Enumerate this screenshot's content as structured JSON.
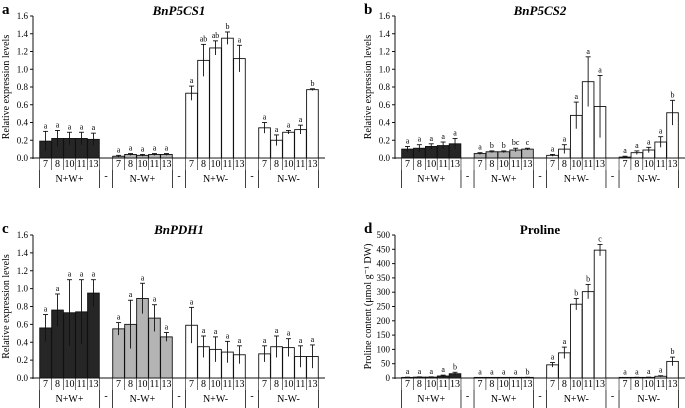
{
  "colors": {
    "nwpp": "#262626",
    "nmwp": "#b4b4b4",
    "npwm": "#ffffff",
    "nmwm": "#ffffff",
    "stroke": "#111111"
  },
  "chart_data": [
    {
      "panel": "a",
      "title": "BnP5CS1",
      "type": "bar",
      "ylabel": "Relative expression levels",
      "ylim": [
        0,
        1.6
      ],
      "ytick_labels": [
        "0.0",
        "0.2",
        "0.4",
        "0.6",
        "0.8",
        "1.0",
        "1.2",
        "1.4",
        "1.6"
      ],
      "groups": [
        {
          "name": "N+W+",
          "categories": [
            "7",
            "8",
            "10",
            "11",
            "13"
          ],
          "values": [
            0.19,
            0.22,
            0.22,
            0.22,
            0.21
          ],
          "errors": [
            0.11,
            0.09,
            0.07,
            0.07,
            0.07
          ],
          "letters": [
            "a",
            "a",
            "a",
            "a",
            "a"
          ],
          "fill": "nwpp"
        },
        {
          "name": "N-W+",
          "categories": [
            "7",
            "8",
            "10",
            "11",
            "13"
          ],
          "values": [
            0.02,
            0.04,
            0.03,
            0.04,
            0.04
          ],
          "errors": [
            0.01,
            0.01,
            0.01,
            0.01,
            0.01
          ],
          "letters": [
            "a",
            "a",
            "a",
            "a",
            "a"
          ],
          "fill": "nmwp"
        },
        {
          "name": "N+W-",
          "categories": [
            "7",
            "8",
            "10",
            "11",
            "13"
          ],
          "values": [
            0.73,
            1.1,
            1.24,
            1.35,
            1.12
          ],
          "errors": [
            0.08,
            0.18,
            0.08,
            0.07,
            0.15
          ],
          "letters": [
            "a",
            "ab",
            "ab",
            "b",
            "a"
          ],
          "fill": "npwm"
        },
        {
          "name": "N-W-",
          "categories": [
            "7",
            "8",
            "10",
            "11",
            "13"
          ],
          "values": [
            0.34,
            0.2,
            0.29,
            0.32,
            0.77
          ],
          "errors": [
            0.06,
            0.06,
            0.02,
            0.05,
            0.01
          ],
          "letters": [
            "a",
            "a",
            "a",
            "a",
            "b"
          ],
          "fill": "nmwm"
        }
      ]
    },
    {
      "panel": "b",
      "title": "BnP5CS2",
      "type": "bar",
      "ylabel": "Relative expression levels",
      "ylim": [
        0,
        1.6
      ],
      "ytick_labels": [
        "0.0",
        "0.2",
        "0.4",
        "0.6",
        "0.8",
        "1.0",
        "1.2",
        "1.4",
        "1.6"
      ],
      "groups": [
        {
          "name": "N+W+",
          "categories": [
            "7",
            "8",
            "10",
            "11",
            "13"
          ],
          "values": [
            0.1,
            0.11,
            0.13,
            0.14,
            0.16
          ],
          "errors": [
            0.03,
            0.04,
            0.03,
            0.04,
            0.06
          ],
          "letters": [
            "a",
            "a",
            "a",
            "a",
            "a"
          ],
          "fill": "nwpp"
        },
        {
          "name": "N-W+",
          "categories": [
            "7",
            "8",
            "10",
            "11",
            "13"
          ],
          "values": [
            0.05,
            0.07,
            0.07,
            0.09,
            0.1
          ],
          "errors": [
            0.01,
            0.01,
            0.01,
            0.02,
            0.01
          ],
          "letters": [
            "a",
            "b",
            "b",
            "bc",
            "c"
          ],
          "fill": "nmwp"
        },
        {
          "name": "N+W-",
          "categories": [
            "7",
            "8",
            "10",
            "11",
            "13"
          ],
          "values": [
            0.03,
            0.1,
            0.48,
            0.86,
            0.58
          ],
          "errors": [
            0.01,
            0.05,
            0.15,
            0.28,
            0.35
          ],
          "letters": [
            "a",
            "a",
            "a",
            "a",
            "a"
          ],
          "fill": "npwm"
        },
        {
          "name": "N-W-",
          "categories": [
            "7",
            "8",
            "10",
            "11",
            "13"
          ],
          "values": [
            0.01,
            0.06,
            0.09,
            0.18,
            0.51
          ],
          "errors": [
            0.01,
            0.02,
            0.03,
            0.06,
            0.14
          ],
          "letters": [
            "a",
            "a",
            "a",
            "a",
            "b"
          ],
          "fill": "nmwm"
        }
      ]
    },
    {
      "panel": "c",
      "title": "BnPDH1",
      "type": "bar",
      "ylabel": "Relative expression levels",
      "ylim": [
        0,
        1.6
      ],
      "ytick_labels": [
        "0.0",
        "0.2",
        "0.4",
        "0.6",
        "0.8",
        "1.0",
        "1.2",
        "1.4",
        "1.6"
      ],
      "groups": [
        {
          "name": "N+W+",
          "categories": [
            "7",
            "8",
            "10",
            "11",
            "13"
          ],
          "values": [
            0.56,
            0.76,
            0.73,
            0.74,
            0.95
          ],
          "errors": [
            0.15,
            0.18,
            0.37,
            0.36,
            0.15
          ],
          "letters": [
            "a",
            "a",
            "a",
            "a",
            "a"
          ],
          "fill": "nwpp"
        },
        {
          "name": "N-W+",
          "categories": [
            "7",
            "8",
            "10",
            "11",
            "13"
          ],
          "values": [
            0.55,
            0.6,
            0.89,
            0.67,
            0.46
          ],
          "errors": [
            0.07,
            0.27,
            0.17,
            0.15,
            0.05
          ],
          "letters": [
            "a",
            "a",
            "a",
            "a",
            "a"
          ],
          "fill": "nmwp"
        },
        {
          "name": "N+W-",
          "categories": [
            "7",
            "8",
            "10",
            "11",
            "13"
          ],
          "values": [
            0.59,
            0.35,
            0.32,
            0.29,
            0.26
          ],
          "errors": [
            0.2,
            0.12,
            0.14,
            0.12,
            0.1
          ],
          "letters": [
            "a",
            "a",
            "a",
            "a",
            "a"
          ],
          "fill": "npwm"
        },
        {
          "name": "N-W-",
          "categories": [
            "7",
            "8",
            "10",
            "11",
            "13"
          ],
          "values": [
            0.27,
            0.35,
            0.34,
            0.24,
            0.24
          ],
          "errors": [
            0.09,
            0.12,
            0.1,
            0.12,
            0.13
          ],
          "letters": [
            "a",
            "a",
            "a",
            "a",
            "a"
          ],
          "fill": "nmwm"
        }
      ]
    },
    {
      "panel": "d",
      "title": "Proline",
      "type": "bar",
      "ylabel": "Proline content (μmol g⁻¹ DW)",
      "ylim": [
        0,
        500
      ],
      "ytick_labels": [
        "0",
        "50",
        "100",
        "150",
        "200",
        "250",
        "300",
        "350",
        "400",
        "450",
        "500"
      ],
      "groups": [
        {
          "name": "N+W+",
          "categories": [
            "7",
            "8",
            "10",
            "11",
            "13"
          ],
          "values": [
            2,
            3,
            3,
            7,
            15
          ],
          "errors": [
            1,
            1,
            1,
            3,
            5
          ],
          "letters": [
            "a",
            "a",
            "a",
            "a",
            "b"
          ],
          "fill": "nwpp"
        },
        {
          "name": "N-W+",
          "categories": [
            "7",
            "8",
            "10",
            "11",
            "13"
          ],
          "values": [
            1,
            1,
            1,
            1,
            2
          ],
          "errors": [
            0.5,
            0.5,
            0.5,
            0.5,
            0.5
          ],
          "letters": [
            "a",
            "a",
            "a",
            "a",
            "b"
          ],
          "fill": "nmwp"
        },
        {
          "name": "N+W-",
          "categories": [
            "7",
            "8",
            "10",
            "11",
            "13"
          ],
          "values": [
            46,
            88,
            258,
            302,
            447
          ],
          "errors": [
            8,
            20,
            20,
            25,
            20
          ],
          "letters": [
            "a",
            "a",
            "b",
            "b",
            "c"
          ],
          "fill": "npwm"
        },
        {
          "name": "N-W-",
          "categories": [
            "7",
            "8",
            "10",
            "11",
            "13"
          ],
          "values": [
            1,
            2,
            2,
            6,
            58
          ],
          "errors": [
            0.5,
            0.5,
            1,
            2,
            15
          ],
          "letters": [
            "a",
            "a",
            "a",
            "a",
            "b"
          ],
          "fill": "nmwm"
        }
      ]
    }
  ],
  "separator_label": "-"
}
